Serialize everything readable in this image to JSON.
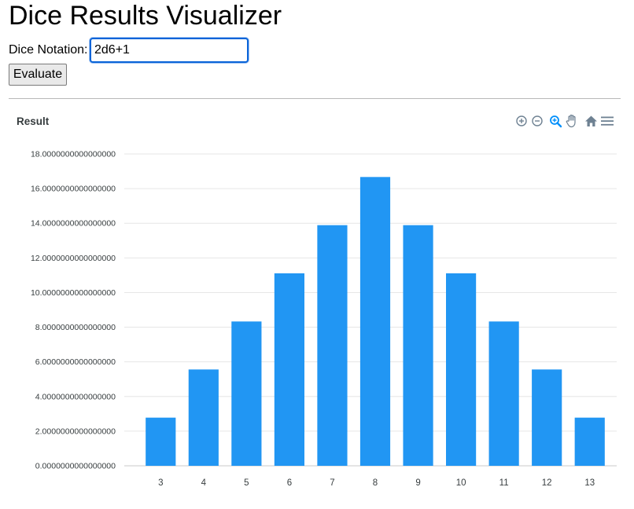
{
  "app": {
    "title": "Dice Results Visualizer"
  },
  "form": {
    "label": "Dice Notation:",
    "value": "2d6+1",
    "button_label": "Evaluate"
  },
  "chart": {
    "title": "Result",
    "toolbar": [
      "zoom-in-icon",
      "zoom-out-icon",
      "selection-zoom-icon",
      "pan-hand-icon",
      "reset-home-icon",
      "menu-icon"
    ]
  },
  "colors": {
    "bar": "#2196f3",
    "accent": "#0a64d8",
    "grid": "#e6e6e6",
    "toolbar": "#6e8192",
    "toolbar_active": "#008ffb"
  },
  "chart_data": {
    "type": "bar",
    "title": "Result",
    "categories": [
      "3",
      "4",
      "5",
      "6",
      "7",
      "8",
      "9",
      "10",
      "11",
      "12",
      "13"
    ],
    "series": [
      {
        "values": [
          2.78,
          5.56,
          8.33,
          11.11,
          13.89,
          16.67,
          13.89,
          11.11,
          8.33,
          5.56,
          2.78
        ]
      }
    ],
    "ylim": [
      0,
      18
    ],
    "yticks": [
      "0.0000000000000000",
      "2.0000000000000000",
      "4.0000000000000000",
      "6.0000000000000000",
      "8.0000000000000000",
      "10.0000000000000000",
      "12.0000000000000000",
      "14.0000000000000000",
      "16.0000000000000000",
      "18.0000000000000000"
    ],
    "grid": true,
    "xlabel": "",
    "ylabel": ""
  }
}
